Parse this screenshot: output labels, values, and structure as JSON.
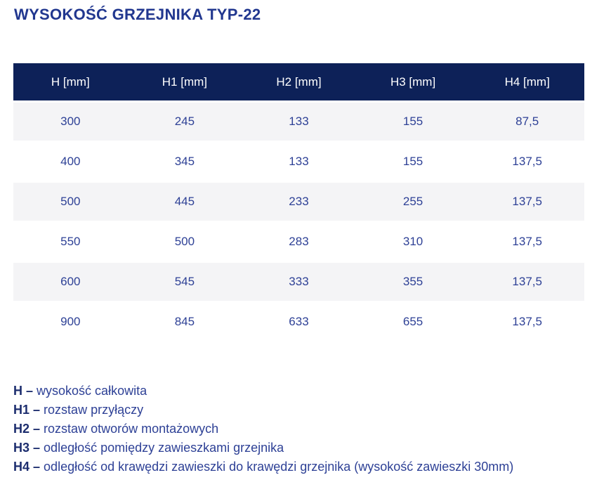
{
  "title": "WYSOKOŚĆ GRZEJNIKA TYP-22",
  "table": {
    "headers": [
      "H [mm]",
      "H1 [mm]",
      "H2 [mm]",
      "H3 [mm]",
      "H4 [mm]"
    ],
    "rows": [
      [
        "300",
        "245",
        "133",
        "155",
        "87,5"
      ],
      [
        "400",
        "345",
        "133",
        "155",
        "137,5"
      ],
      [
        "500",
        "445",
        "233",
        "255",
        "137,5"
      ],
      [
        "550",
        "500",
        "283",
        "310",
        "137,5"
      ],
      [
        "600",
        "545",
        "333",
        "355",
        "137,5"
      ],
      [
        "900",
        "845",
        "633",
        "655",
        "137,5"
      ]
    ]
  },
  "legend": [
    {
      "term": "H –",
      "definition": "wysokość całkowita"
    },
    {
      "term": "H1 –",
      "definition": "rozstaw przyłączy"
    },
    {
      "term": "H2 –",
      "definition": "rozstaw otworów montażowych"
    },
    {
      "term": "H3 –",
      "definition": "odległość pomiędzy zawieszkami grzejnika"
    },
    {
      "term": "H4 –",
      "definition": "odległość od krawędzi zawieszki do krawędzi grzejnika (wysokość zawieszki 30mm)"
    }
  ],
  "colors": {
    "header_bg": "#0d2158",
    "header_text": "#ffffff",
    "title_text": "#21378f",
    "cell_text": "#2e4196",
    "legend_term_text": "#1c2d6e",
    "row_alt_bg": "#f4f4f6"
  }
}
